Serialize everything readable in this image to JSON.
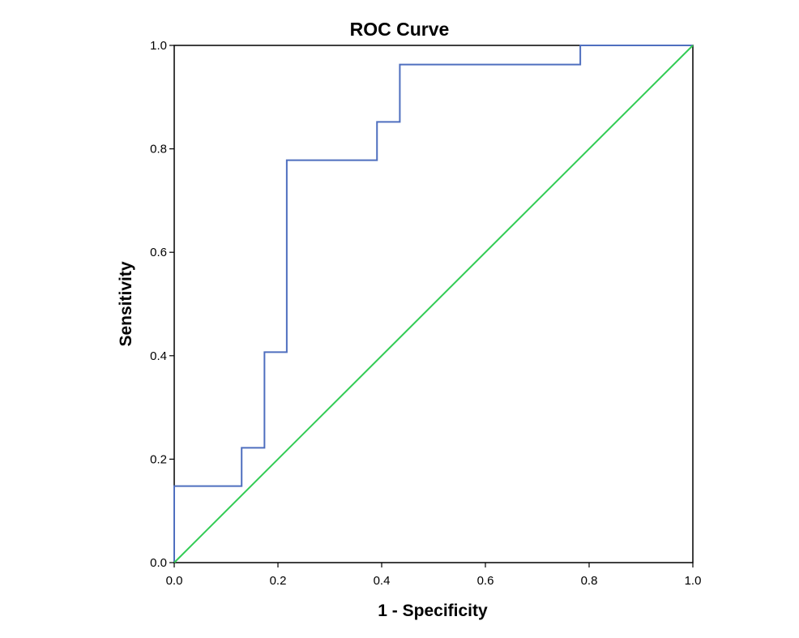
{
  "chart_data": {
    "type": "line",
    "title": "ROC Curve",
    "xlabel": "1 - Specificity",
    "ylabel": "Sensitivity",
    "xlim": [
      0,
      1
    ],
    "ylim": [
      0,
      1
    ],
    "xticks": [
      "0.0",
      "0.2",
      "0.4",
      "0.6",
      "0.8",
      "1.0"
    ],
    "yticks": [
      "0.0",
      "0.2",
      "0.4",
      "0.6",
      "0.8",
      "1.0"
    ],
    "grid": false,
    "series": [
      {
        "name": "ROC",
        "color": "#4f6fbf",
        "x": [
          0.0,
          0.0,
          0.13,
          0.13,
          0.174,
          0.174,
          0.217,
          0.217,
          0.391,
          0.391,
          0.435,
          0.435,
          0.783,
          0.783,
          1.0
        ],
        "y": [
          0.0,
          0.148,
          0.148,
          0.222,
          0.222,
          0.407,
          0.407,
          0.778,
          0.778,
          0.852,
          0.852,
          0.963,
          0.963,
          1.0,
          1.0
        ]
      },
      {
        "name": "Reference Line",
        "color": "#33cc55",
        "x": [
          0.0,
          1.0
        ],
        "y": [
          0.0,
          1.0
        ]
      }
    ]
  }
}
